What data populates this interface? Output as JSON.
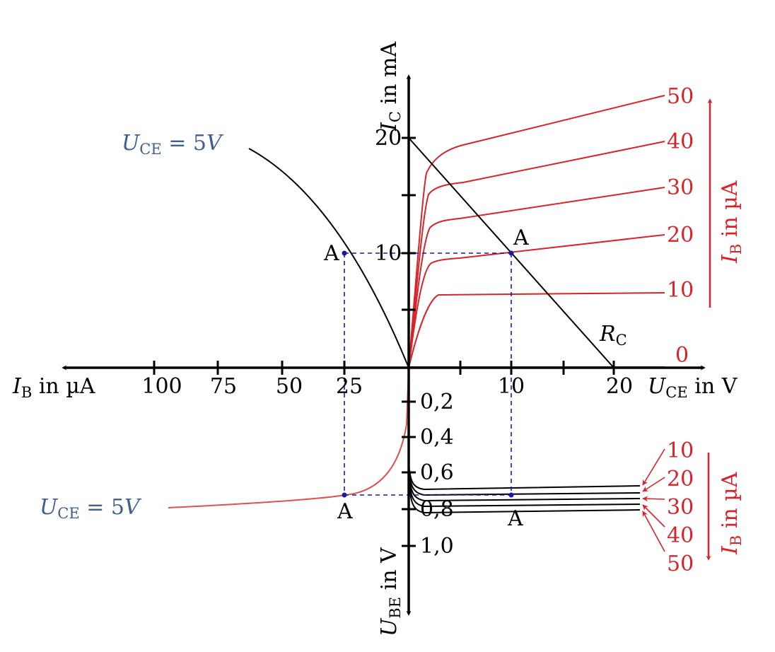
{
  "colors": {
    "axis": "#000000",
    "ib_curves": "#d8232a",
    "ube_curve": "#e05050",
    "operating_point": "#1a1a9c",
    "annotation": "#3f5f8f"
  },
  "axes": {
    "ic": {
      "symbol": "I",
      "subscript": "C",
      "unit": " in mA"
    },
    "uce": {
      "symbol": "U",
      "subscript": "CE",
      "unit": " in V"
    },
    "ib": {
      "symbol": "I",
      "subscript": "B",
      "unit": " in µA"
    },
    "ube": {
      "symbol": "U",
      "subscript": "BE",
      "unit": " in V"
    }
  },
  "ticks": {
    "ic": [
      "20",
      "10"
    ],
    "uce": [
      "10",
      "20"
    ],
    "ib": [
      "100",
      "75",
      "50",
      "25"
    ],
    "ube": [
      "0,2",
      "0,4",
      "0,6",
      "0,8",
      "1,0"
    ]
  },
  "output_curve_labels": [
    "50",
    "40",
    "30",
    "20",
    "10",
    "0"
  ],
  "input_curve_labels": [
    "10",
    "20",
    "30",
    "40",
    "50"
  ],
  "ib_legend": {
    "symbol": "I",
    "subscript": "B",
    "unit": " in µA"
  },
  "load_line": {
    "symbol": "R",
    "subscript": "C"
  },
  "operating_point": "A",
  "uce_condition": {
    "symbol": "U",
    "subscript": "CE",
    "value": " = 5",
    "unit": "V"
  },
  "curve_data": {
    "output_ib_uA": [
      50,
      40,
      30,
      20,
      10,
      0
    ],
    "operating_point": {
      "uce_V": 10,
      "ic_mA": 10,
      "ib_uA": 25,
      "ube_V": 0.7
    },
    "load_line": {
      "uce_V": [
        0,
        20
      ],
      "ic_mA": [
        20,
        0
      ]
    }
  }
}
